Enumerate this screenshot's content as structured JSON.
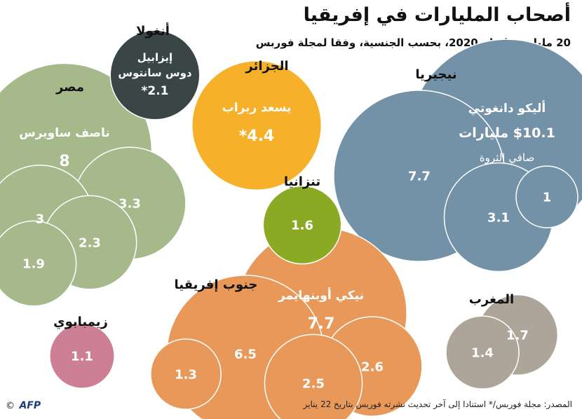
{
  "title": "أصحاب المليارات في إفريقيا",
  "subtitle": "20 ملياردير ا عام 2020، بحسب الجنسية، وفقا لمجلة فوربس",
  "source": "المصدر: مجلة فوربس/* استنادا إلى آخر تحديث نشرته فوربس بتاريخ 22 يناير",
  "logo": {
    "copyright": "©",
    "brand": "AFP"
  },
  "colors": {
    "nigeria": "#7392a8",
    "egypt": "#a6b98a",
    "south_africa": "#e8995a",
    "algeria": "#f7b02a",
    "angola": "#3a4546",
    "tanzania": "#8aaa24",
    "morocco": "#ada49a",
    "zimbabwe": "#cd7f95"
  },
  "chart_data": {
    "type": "bubble",
    "title": "أصحاب المليارات في إفريقيا",
    "subtitle": "20 ملياردير ا عام 2020، بحسب الجنسية، وفقا لمجلة فوربس",
    "unit": "مليار دولار",
    "groups": [
      {
        "country": "نيجيريا",
        "color": "#7392a8",
        "billionaires": [
          {
            "name": "أليكو دانغوتي",
            "value": 10.1,
            "value_label": "$10.1 مليارات",
            "note": "صافي الثروة"
          },
          {
            "value": 7.7,
            "value_label": "7.7"
          },
          {
            "value": 3.1,
            "value_label": "3.1"
          },
          {
            "value": 1,
            "value_label": "1"
          }
        ]
      },
      {
        "country": "مصر",
        "color": "#a6b98a",
        "billionaires": [
          {
            "name": "ناصف ساويرس",
            "value": 8,
            "value_label": "8"
          },
          {
            "value": 3.3,
            "value_label": "3.3"
          },
          {
            "value": 3,
            "value_label": "3"
          },
          {
            "value": 2.3,
            "value_label": "2.3"
          },
          {
            "value": 1.9,
            "value_label": "1.9"
          }
        ]
      },
      {
        "country": "جنوب إفريقيا",
        "color": "#e8995a",
        "billionaires": [
          {
            "name": "نيكي أوبنهايمر",
            "value": 7.7,
            "value_label": "7.7"
          },
          {
            "value": 6.5,
            "value_label": "6.5"
          },
          {
            "value": 2.6,
            "value_label": "2.6"
          },
          {
            "value": 2.5,
            "value_label": "2.5"
          },
          {
            "value": 1.3,
            "value_label": "1.3"
          }
        ]
      },
      {
        "country": "الجزائر",
        "color": "#f7b02a",
        "billionaires": [
          {
            "name": "يسعد ربراب",
            "value": 4.4,
            "value_label": "*4.4"
          }
        ]
      },
      {
        "country": "أنغولا",
        "color": "#3a4546",
        "billionaires": [
          {
            "name": "إيزابيل دوس سانتوس",
            "name_line1": "إيزابيل",
            "name_line2": "دوس سانتوس",
            "value": 2.1,
            "value_label": "*2.1"
          }
        ]
      },
      {
        "country": "تنزانيا",
        "color": "#8aaa24",
        "billionaires": [
          {
            "value": 1.6,
            "value_label": "1.6"
          }
        ]
      },
      {
        "country": "المغرب",
        "color": "#ada49a",
        "billionaires": [
          {
            "value": 1.7,
            "value_label": "1.7"
          },
          {
            "value": 1.4,
            "value_label": "1.4"
          }
        ]
      },
      {
        "country": "زيمبابوي",
        "color": "#cd7f95",
        "billionaires": [
          {
            "value": 1.1,
            "value_label": "1.1"
          }
        ]
      }
    ]
  }
}
